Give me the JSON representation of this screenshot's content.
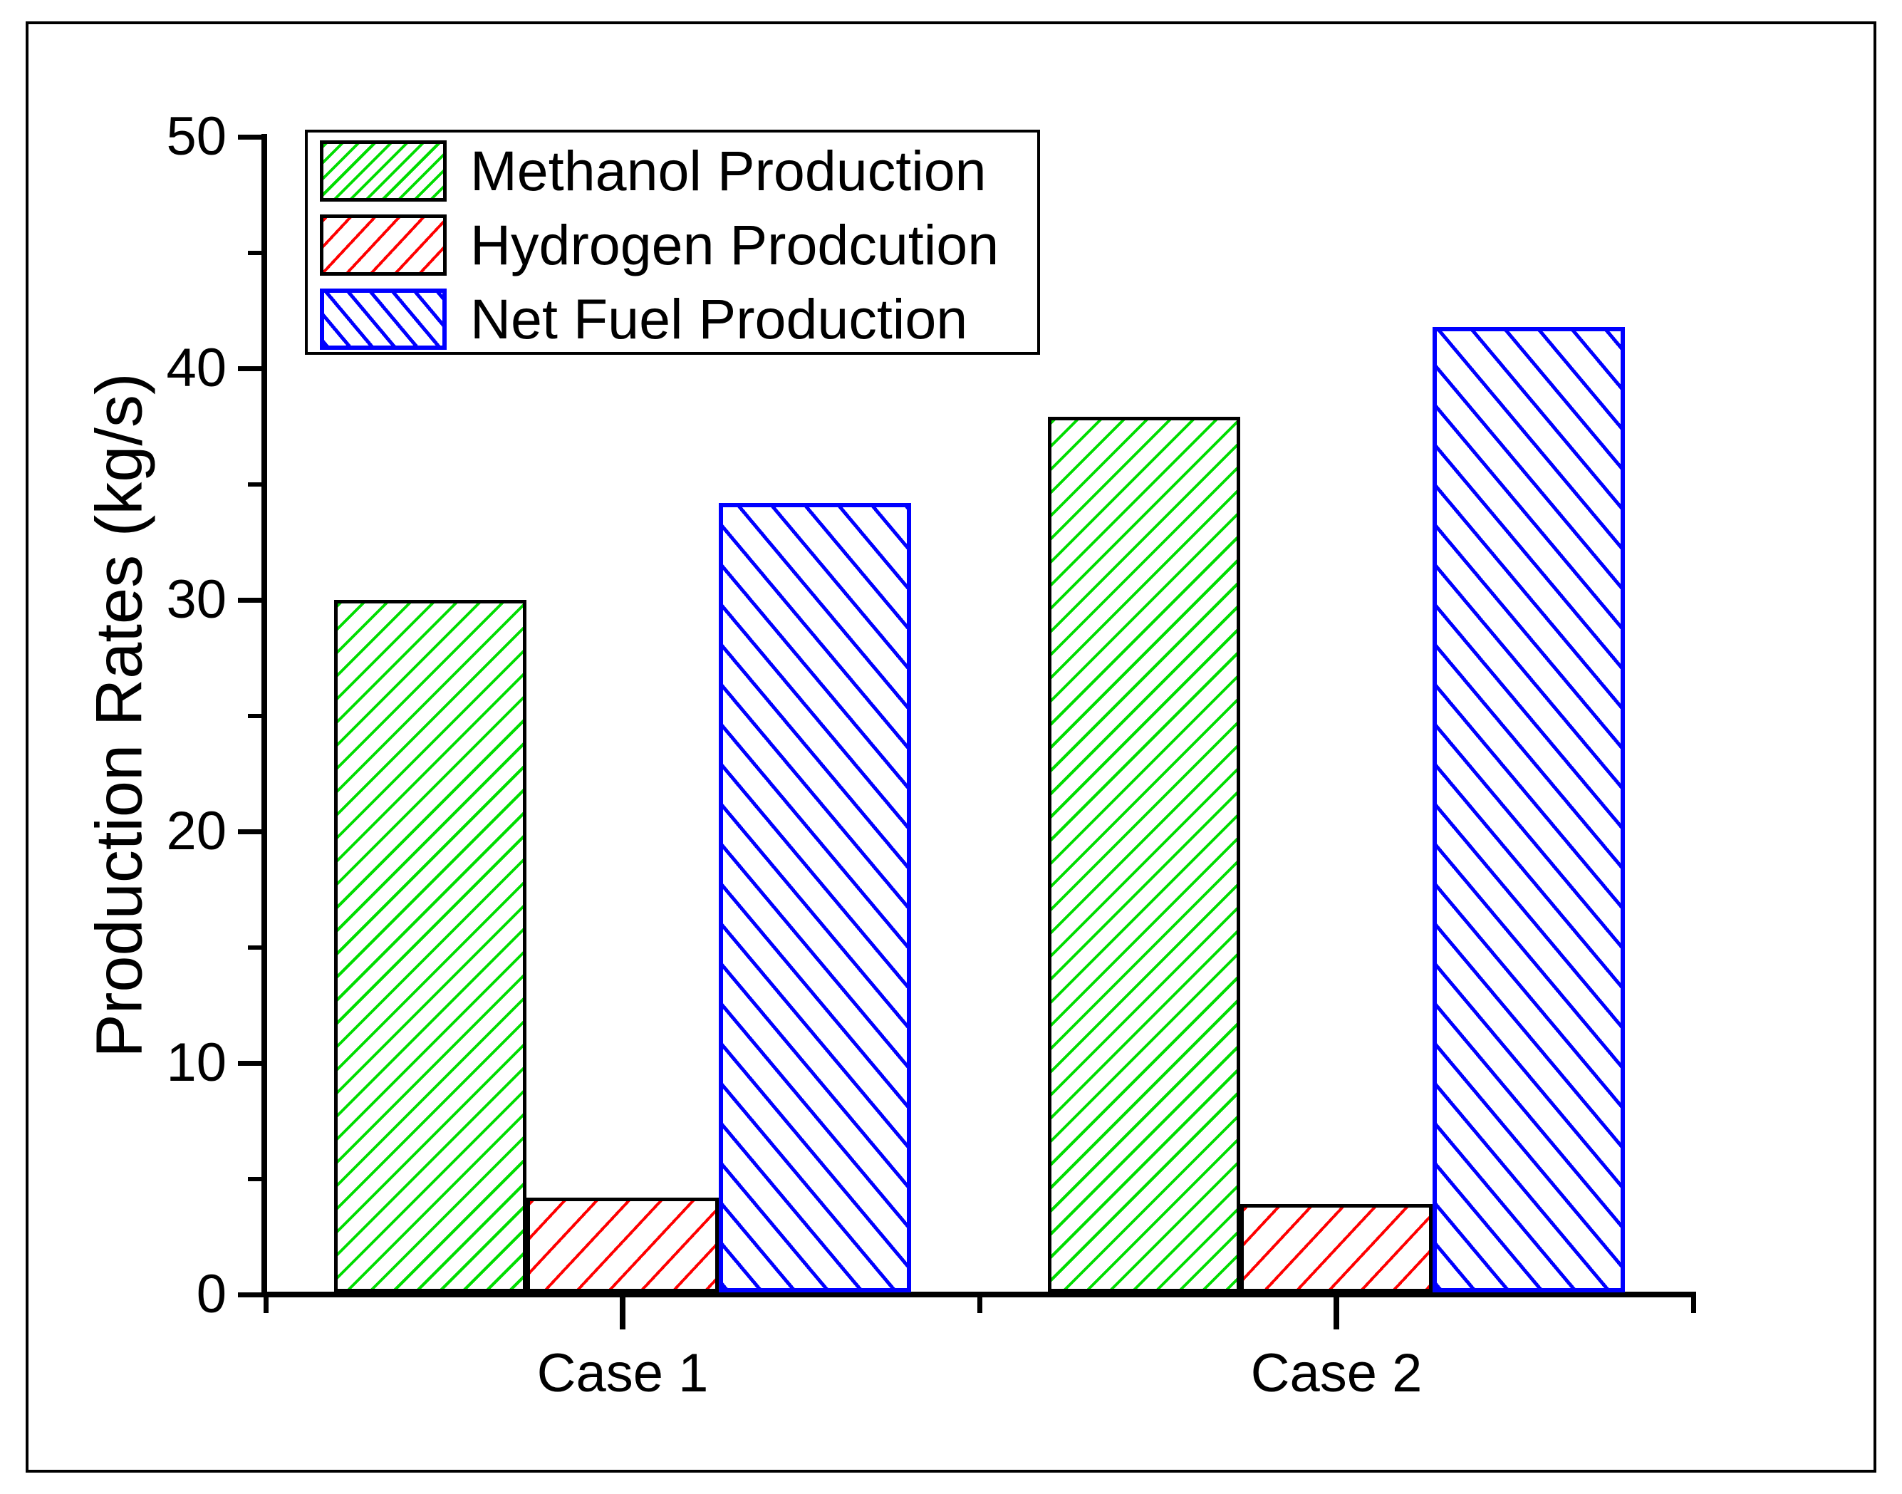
{
  "figure": {
    "background": "#ffffff",
    "frame_color": "#000000"
  },
  "chart_data": {
    "type": "bar",
    "title": "",
    "xlabel": "",
    "ylabel": "Production Rates (kg/s)",
    "categories": [
      "Case 1",
      "Case 2"
    ],
    "series": [
      {
        "name": "Methanol Production",
        "values": [
          30.0,
          37.9
        ],
        "color": "#00DD00",
        "border_color": "#000000",
        "hatch": "forward-diagonal"
      },
      {
        "name": "Hydrogen Prodcution",
        "values": [
          4.2,
          3.9
        ],
        "color": "#FF0000",
        "border_color": "#000000",
        "hatch": "forward-diagonal-wide"
      },
      {
        "name": "Net Fuel Production",
        "values": [
          34.2,
          41.8
        ],
        "color": "#0000FF",
        "border_color": "#0000FF",
        "hatch": "backward-diagonal"
      }
    ],
    "ylim": [
      0,
      50
    ],
    "y_major_ticks": [
      0,
      10,
      20,
      30,
      40,
      50
    ],
    "y_minor_step": 5,
    "grid": false,
    "legend_position": "top-left"
  }
}
